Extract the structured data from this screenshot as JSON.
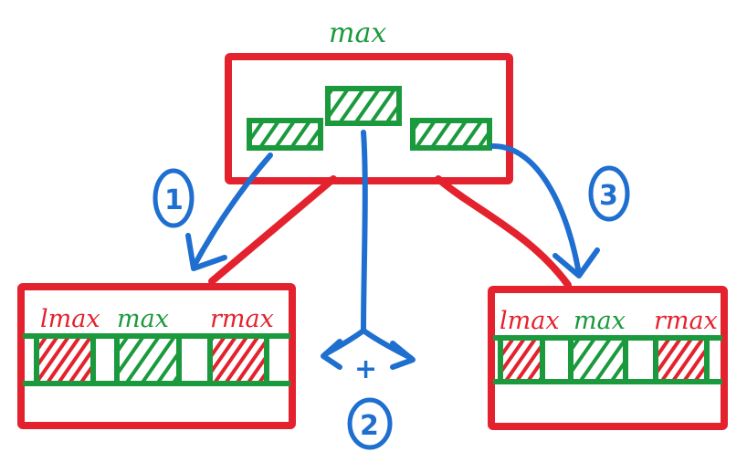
{
  "root": {
    "label": "max"
  },
  "left_child": {
    "labels": [
      "lmax",
      "max",
      "rmax"
    ]
  },
  "right_child": {
    "labels": [
      "lmax",
      "max",
      "rmax"
    ]
  },
  "operators": {
    "plus": "+"
  },
  "steps": [
    "1",
    "2",
    "3"
  ],
  "colors": {
    "node_border": "#e3222e",
    "segment": "#1a9a3c",
    "hatch_red": "#e3222e",
    "arrow": "#1f6fd0"
  }
}
